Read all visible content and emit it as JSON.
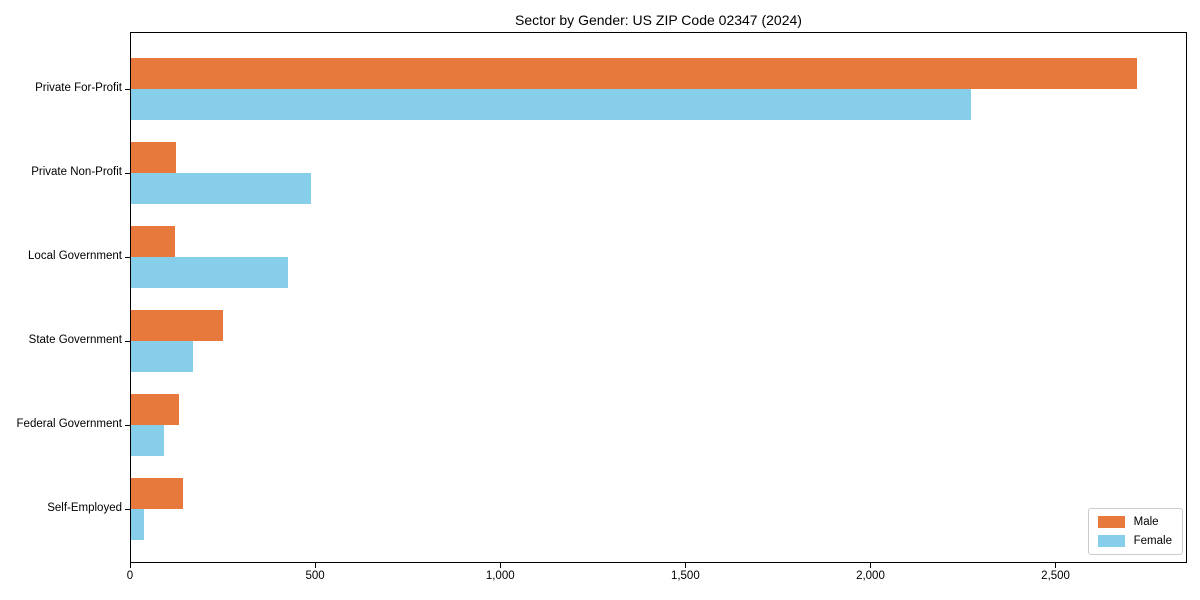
{
  "title": "Sector by Gender: US ZIP Code 02347 (2024)",
  "chart_data": {
    "type": "bar",
    "orientation": "horizontal",
    "title": "Sector by Gender: US ZIP Code 02347 (2024)",
    "categories": [
      "Private For-Profit",
      "Private Non-Profit",
      "Local Government",
      "State Government",
      "Federal Government",
      "Self-Employed"
    ],
    "series": [
      {
        "name": "Male",
        "color": "#E8793D",
        "values": [
          2716,
          122,
          119,
          248,
          130,
          140
        ]
      },
      {
        "name": "Female",
        "color": "#87CEEB",
        "values": [
          2268,
          485,
          425,
          167,
          88,
          34
        ]
      }
    ],
    "xlabel": "",
    "ylabel": "",
    "xlim": [
      0,
      2855
    ],
    "xticks": [
      0,
      500,
      1000,
      1500,
      2000,
      2500
    ],
    "xtick_labels": [
      "0",
      "500",
      "1,000",
      "1,500",
      "2,000",
      "2,500"
    ],
    "grid": false,
    "legend_position": "lower right",
    "background_color": "#ffffff",
    "spine_color": "#000000"
  },
  "legend": {
    "items": [
      {
        "label": "Male",
        "color": "#E8793D"
      },
      {
        "label": "Female",
        "color": "#87CEEB"
      }
    ]
  }
}
